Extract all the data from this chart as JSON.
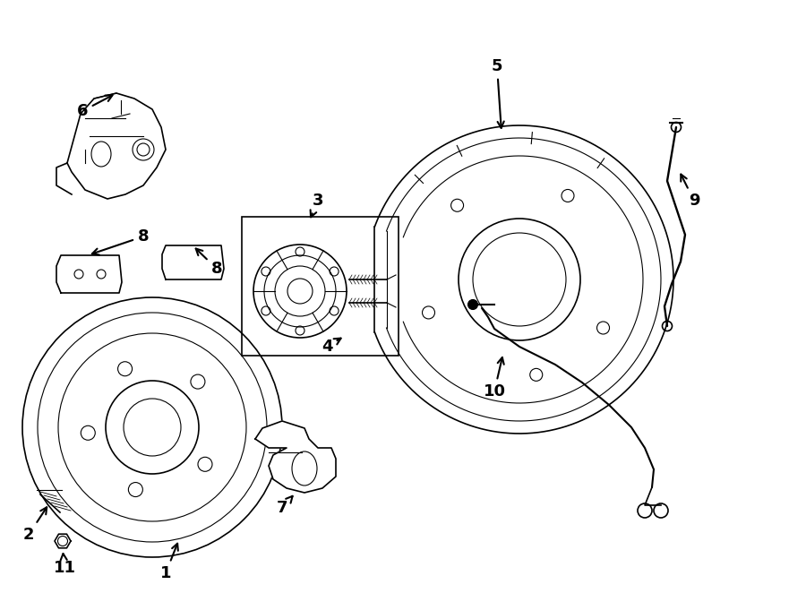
{
  "bg_color": "#ffffff",
  "line_color": "#000000",
  "label_color": "#000000",
  "fig_width": 9.0,
  "fig_height": 6.62
}
